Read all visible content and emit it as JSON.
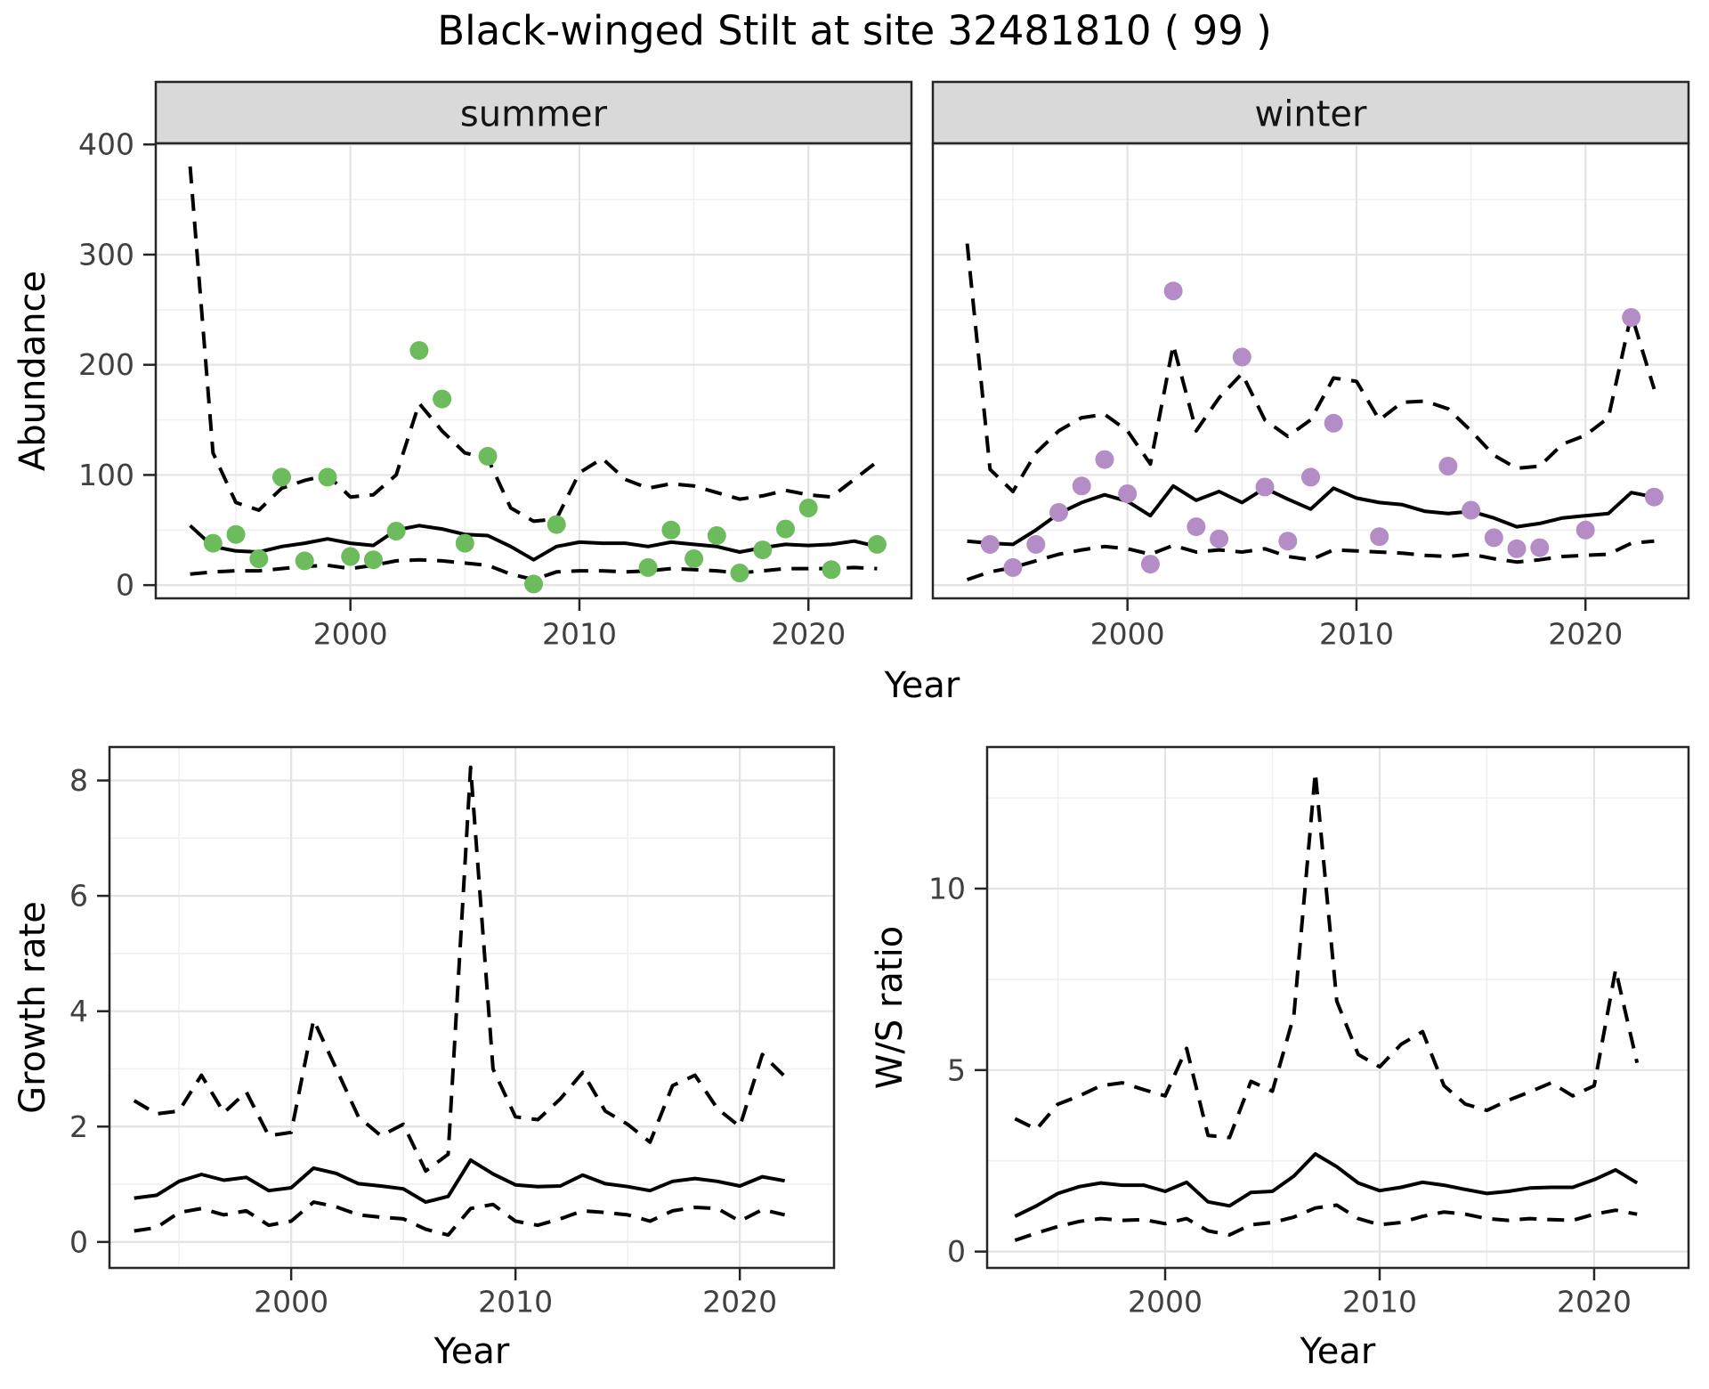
{
  "title": "Black-winged Stilt at site 32481810 ( 99 )",
  "shared_x_label": "Year",
  "colors": {
    "summer_points": "#6cbb5c",
    "winter_points": "#b48cc6",
    "line": "#000000",
    "strip_fill": "#d9d9d9",
    "strip_text": "#141414",
    "panel_border": "#262626",
    "grid_major": "#e3e3e3",
    "grid_minor": "#efefef",
    "tick_label": "#404040",
    "axis_title": "#000000"
  },
  "chart_data": [
    {
      "id": "abundance-summer",
      "type": "line",
      "facet_label": "summer",
      "y_label": "Abundance",
      "x_label": null,
      "xlim": [
        1991.5,
        2024.5
      ],
      "ylim": [
        -12,
        401
      ],
      "xticks": [
        2000,
        2010,
        2020
      ],
      "xticks_minor": [
        1995,
        2005,
        2015
      ],
      "yticks": [
        0,
        100,
        200,
        300,
        400
      ],
      "yticks_minor": [
        50,
        150,
        250,
        350
      ],
      "x": [
        1993,
        1994,
        1995,
        1996,
        1997,
        1998,
        1999,
        2000,
        2001,
        2002,
        2003,
        2004,
        2005,
        2006,
        2007,
        2008,
        2009,
        2010,
        2011,
        2012,
        2013,
        2014,
        2015,
        2016,
        2017,
        2018,
        2019,
        2020,
        2021,
        2022,
        2023
      ],
      "series": [
        {
          "name": "median",
          "style": "solid",
          "values": [
            54,
            35,
            31,
            30,
            35,
            38,
            42,
            38,
            36,
            50,
            54,
            51,
            46,
            45,
            35,
            23,
            35,
            39,
            38,
            38,
            35,
            39,
            37,
            35,
            30,
            34,
            37,
            36,
            37,
            40,
            35
          ]
        },
        {
          "name": "upper_ci",
          "style": "dashed",
          "values": [
            380,
            120,
            75,
            68,
            88,
            95,
            100,
            80,
            82,
            100,
            165,
            140,
            120,
            115,
            70,
            58,
            60,
            102,
            115,
            96,
            88,
            92,
            90,
            84,
            78,
            81,
            86,
            82,
            80,
            96,
            112
          ]
        },
        {
          "name": "lower_ci",
          "style": "dashed",
          "values": [
            10,
            12,
            13,
            13,
            15,
            17,
            18,
            15,
            18,
            22,
            23,
            22,
            20,
            18,
            10,
            5,
            12,
            13,
            13,
            12,
            13,
            15,
            14,
            13,
            11,
            13,
            15,
            15,
            15,
            16,
            15
          ]
        }
      ],
      "points": {
        "color_key": "summer_points",
        "x": [
          1994,
          1995,
          1996,
          1997,
          1998,
          1999,
          2000,
          2001,
          2002,
          2003,
          2004,
          2005,
          2006,
          2008,
          2009,
          2013,
          2014,
          2015,
          2016,
          2017,
          2018,
          2019,
          2020,
          2021,
          2023
        ],
        "y": [
          38,
          46,
          24,
          98,
          22,
          98,
          26,
          23,
          49,
          213,
          169,
          38,
          117,
          1,
          55,
          16,
          50,
          24,
          45,
          11,
          32,
          51,
          70,
          14,
          37
        ]
      }
    },
    {
      "id": "abundance-winter",
      "type": "line",
      "facet_label": "winter",
      "y_label": null,
      "x_label": null,
      "xlim": [
        1991.5,
        2024.5
      ],
      "ylim": [
        -12,
        401
      ],
      "xticks": [
        2000,
        2010,
        2020
      ],
      "xticks_minor": [
        1995,
        2005,
        2015
      ],
      "yticks": [
        0,
        100,
        200,
        300,
        400
      ],
      "yticks_minor": [
        50,
        150,
        250,
        350
      ],
      "x": [
        1993,
        1994,
        1995,
        1996,
        1997,
        1998,
        1999,
        2000,
        2001,
        2002,
        2003,
        2004,
        2005,
        2006,
        2007,
        2008,
        2009,
        2010,
        2011,
        2012,
        2013,
        2014,
        2015,
        2016,
        2017,
        2018,
        2019,
        2020,
        2021,
        2022,
        2023
      ],
      "series": [
        {
          "name": "median",
          "style": "solid",
          "values": [
            40,
            38,
            37,
            50,
            65,
            75,
            82,
            76,
            63,
            90,
            77,
            85,
            75,
            88,
            78,
            69,
            88,
            79,
            75,
            73,
            67,
            65,
            67,
            61,
            53,
            56,
            61,
            63,
            65,
            84,
            80
          ]
        },
        {
          "name": "upper_ci",
          "style": "dashed",
          "values": [
            310,
            105,
            85,
            120,
            140,
            152,
            155,
            140,
            110,
            218,
            140,
            170,
            192,
            150,
            135,
            150,
            188,
            185,
            150,
            166,
            167,
            160,
            140,
            118,
            106,
            108,
            128,
            136,
            152,
            246,
            178
          ]
        },
        {
          "name": "lower_ci",
          "style": "dashed",
          "values": [
            5,
            12,
            16,
            22,
            28,
            32,
            35,
            33,
            28,
            36,
            30,
            32,
            30,
            33,
            26,
            23,
            32,
            31,
            30,
            29,
            27,
            26,
            28,
            24,
            21,
            23,
            26,
            27,
            28,
            38,
            40
          ]
        }
      ],
      "points": {
        "color_key": "winter_points",
        "x": [
          1994,
          1995,
          1996,
          1997,
          1998,
          1999,
          2000,
          2001,
          2002,
          2003,
          2004,
          2005,
          2006,
          2007,
          2008,
          2009,
          2011,
          2014,
          2015,
          2016,
          2017,
          2018,
          2020,
          2022,
          2023
        ],
        "y": [
          37,
          16,
          37,
          66,
          90,
          114,
          83,
          19,
          267,
          53,
          42,
          207,
          89,
          40,
          98,
          147,
          44,
          108,
          68,
          43,
          33,
          34,
          50,
          243,
          80
        ]
      }
    },
    {
      "id": "growth-rate",
      "type": "line",
      "facet_label": null,
      "y_label": "Growth rate",
      "x_label": "Year",
      "xlim": [
        1991.9,
        2024.2
      ],
      "ylim": [
        -0.45,
        8.58
      ],
      "xticks": [
        2000,
        2010,
        2020
      ],
      "xticks_minor": [
        1995,
        2005,
        2015
      ],
      "yticks": [
        0,
        2,
        4,
        6,
        8
      ],
      "yticks_minor": [
        1,
        3,
        5,
        7
      ],
      "x": [
        1993,
        1994,
        1995,
        1996,
        1997,
        1998,
        1999,
        2000,
        2001,
        2002,
        2003,
        2004,
        2005,
        2006,
        2007,
        2008,
        2009,
        2010,
        2011,
        2012,
        2013,
        2014,
        2015,
        2016,
        2017,
        2018,
        2019,
        2020,
        2021,
        2022
      ],
      "series": [
        {
          "name": "median",
          "style": "solid",
          "values": [
            0.76,
            0.81,
            1.05,
            1.17,
            1.07,
            1.12,
            0.89,
            0.94,
            1.28,
            1.19,
            1.01,
            0.97,
            0.92,
            0.69,
            0.79,
            1.42,
            1.18,
            0.99,
            0.96,
            0.97,
            1.16,
            1.01,
            0.96,
            0.89,
            1.05,
            1.1,
            1.05,
            0.97,
            1.13,
            1.06
          ]
        },
        {
          "name": "upper_ci",
          "style": "dashed",
          "values": [
            2.45,
            2.22,
            2.27,
            2.89,
            2.24,
            2.6,
            1.84,
            1.9,
            3.85,
            3.01,
            2.17,
            1.84,
            2.04,
            1.23,
            1.52,
            8.23,
            3.0,
            2.17,
            2.12,
            2.48,
            2.94,
            2.27,
            2.04,
            1.73,
            2.71,
            2.89,
            2.31,
            2.0,
            3.25,
            2.87
          ]
        },
        {
          "name": "lower_ci",
          "style": "dashed",
          "values": [
            0.19,
            0.25,
            0.51,
            0.58,
            0.47,
            0.54,
            0.29,
            0.36,
            0.69,
            0.61,
            0.47,
            0.43,
            0.4,
            0.22,
            0.12,
            0.58,
            0.65,
            0.36,
            0.29,
            0.4,
            0.54,
            0.51,
            0.47,
            0.36,
            0.54,
            0.6,
            0.58,
            0.36,
            0.56,
            0.47
          ]
        }
      ],
      "points": null
    },
    {
      "id": "ws-ratio",
      "type": "line",
      "facet_label": null,
      "y_label": "W/S ratio",
      "x_label": "Year",
      "xlim": [
        1991.7,
        2024.4
      ],
      "ylim": [
        -0.45,
        13.9
      ],
      "xticks": [
        2000,
        2010,
        2020
      ],
      "xticks_minor": [
        1995,
        2005,
        2015
      ],
      "yticks": [
        0,
        5,
        10
      ],
      "yticks_minor": [
        2.5,
        7.5,
        12.5
      ],
      "x": [
        1993,
        1994,
        1995,
        1996,
        1997,
        1998,
        1999,
        2000,
        2001,
        2002,
        2003,
        2004,
        2005,
        2006,
        2007,
        2008,
        2009,
        2010,
        2011,
        2012,
        2013,
        2014,
        2015,
        2016,
        2017,
        2018,
        2019,
        2020,
        2021,
        2022
      ],
      "series": [
        {
          "name": "median",
          "style": "solid",
          "values": [
            0.97,
            1.26,
            1.6,
            1.79,
            1.89,
            1.83,
            1.83,
            1.66,
            1.91,
            1.37,
            1.26,
            1.63,
            1.66,
            2.08,
            2.69,
            2.34,
            1.89,
            1.68,
            1.77,
            1.91,
            1.83,
            1.71,
            1.6,
            1.66,
            1.75,
            1.77,
            1.77,
            1.98,
            2.25,
            1.89
          ]
        },
        {
          "name": "upper_ci",
          "style": "dashed",
          "values": [
            3.66,
            3.37,
            4.06,
            4.29,
            4.57,
            4.65,
            4.46,
            4.29,
            5.6,
            3.2,
            3.14,
            4.69,
            4.42,
            6.5,
            13.2,
            6.9,
            5.43,
            5.09,
            5.71,
            6.06,
            4.57,
            4.06,
            3.89,
            4.17,
            4.4,
            4.65,
            4.29,
            4.57,
            7.77,
            5.2
          ]
        },
        {
          "name": "lower_ci",
          "style": "dashed",
          "values": [
            0.31,
            0.51,
            0.69,
            0.83,
            0.91,
            0.86,
            0.88,
            0.77,
            0.91,
            0.57,
            0.46,
            0.74,
            0.8,
            0.95,
            1.2,
            1.28,
            0.91,
            0.74,
            0.8,
            0.97,
            1.09,
            1.03,
            0.91,
            0.86,
            0.91,
            0.88,
            0.86,
            1.03,
            1.14,
            1.03
          ]
        }
      ],
      "points": null
    }
  ]
}
